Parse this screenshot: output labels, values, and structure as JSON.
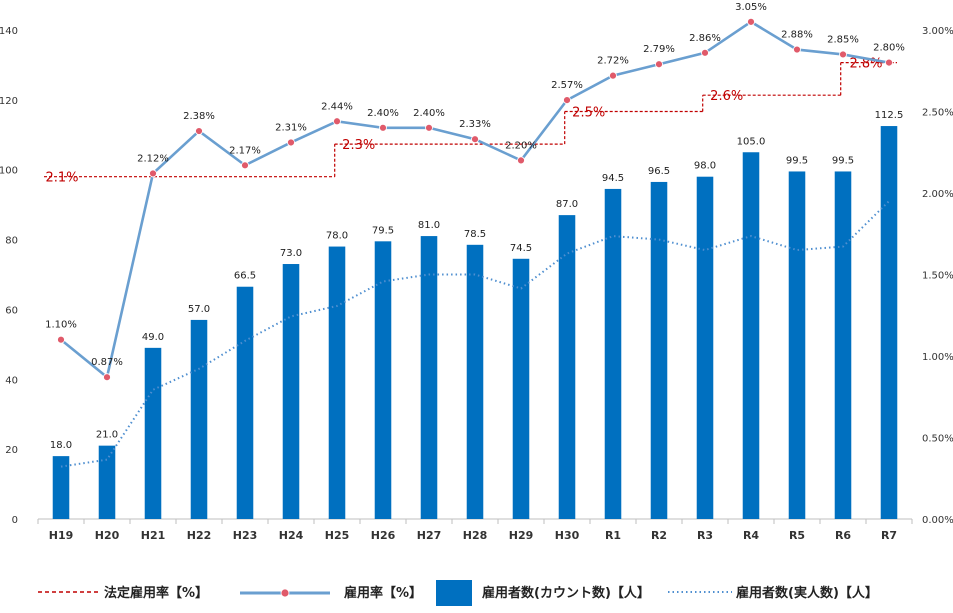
{
  "chart_data": {
    "type": "bar",
    "categories": [
      "H19",
      "H20",
      "H21",
      "H22",
      "H23",
      "H24",
      "H25",
      "H26",
      "H27",
      "H28",
      "H29",
      "H30",
      "R1",
      "R2",
      "R3",
      "R4",
      "R5",
      "R6",
      "R7"
    ],
    "y_left": {
      "ylim": [
        0,
        140
      ],
      "ticks": [
        "0",
        "20",
        "40",
        "60",
        "80",
        "100",
        "120",
        "140"
      ]
    },
    "y_right": {
      "ylim": [
        0,
        3.0
      ],
      "ticks": [
        "0.00%",
        "0.50%",
        "1.00%",
        "1.50%",
        "2.00%",
        "2.50%",
        "3.00%"
      ]
    },
    "colors": {
      "bar": "#0070c0",
      "rate": "#6a9fd0",
      "rate_marker": "#e05a6a",
      "legal": "#c00000",
      "dotted": "#4f8fd0"
    },
    "series": [
      {
        "name": "雇用者数(カウント数)【人】",
        "type": "bar",
        "axis": "left",
        "values": [
          18.0,
          21.0,
          49.0,
          57.0,
          66.5,
          73.0,
          78.0,
          79.5,
          81.0,
          78.5,
          74.5,
          87.0,
          94.5,
          96.5,
          98.0,
          105.0,
          99.5,
          99.5,
          112.5
        ],
        "labels": [
          "18.0",
          "21.0",
          "49.0",
          "57.0",
          "66.5",
          "73.0",
          "78.0",
          "79.5",
          "81.0",
          "78.5",
          "74.5",
          "87.0",
          "94.5",
          "96.5",
          "98.0",
          "105.0",
          "99.5",
          "99.5",
          "112.5"
        ]
      },
      {
        "name": "雇用率【%】",
        "type": "line",
        "axis": "right",
        "values": [
          1.1,
          0.87,
          2.12,
          2.38,
          2.17,
          2.31,
          2.44,
          2.4,
          2.4,
          2.33,
          2.2,
          2.57,
          2.72,
          2.79,
          2.86,
          3.05,
          2.88,
          2.85,
          2.8
        ],
        "labels": [
          "1.10%",
          "0.87%",
          "2.12%",
          "2.38%",
          "2.17%",
          "2.31%",
          "2.44%",
          "2.40%",
          "2.40%",
          "2.33%",
          "2.20%",
          "2.57%",
          "2.72%",
          "2.79%",
          "2.86%",
          "3.05%",
          "2.88%",
          "2.85%",
          "2.80%"
        ]
      },
      {
        "name": "雇用者数(実人数)【人】",
        "type": "line-dotted",
        "axis": "left",
        "values": [
          15,
          17,
          37,
          43,
          51,
          58,
          61,
          68,
          70,
          70,
          66,
          76,
          81,
          80,
          77,
          81,
          77,
          78,
          91
        ]
      },
      {
        "name": "法定雇用率【%】",
        "type": "step-dashed",
        "axis": "right",
        "segments": [
          {
            "value": 2.1,
            "from": "H19",
            "to": "H25",
            "label": "2.1%"
          },
          {
            "value": 2.3,
            "from": "H25",
            "to": "H30",
            "label": "2.3%"
          },
          {
            "value": 2.5,
            "from": "H30",
            "to": "R3",
            "label": "2.5%"
          },
          {
            "value": 2.6,
            "from": "R3",
            "to": "R6",
            "label": "2.6%"
          },
          {
            "value": 2.8,
            "from": "R6",
            "to": "R7",
            "label": "2.8%"
          }
        ]
      }
    ],
    "legend": {
      "position": "bottom",
      "items": [
        "法定雇用率【%】",
        "雇用率【%】",
        "雇用者数(カウント数)【人】",
        "雇用者数(実人数)【人】"
      ]
    }
  }
}
